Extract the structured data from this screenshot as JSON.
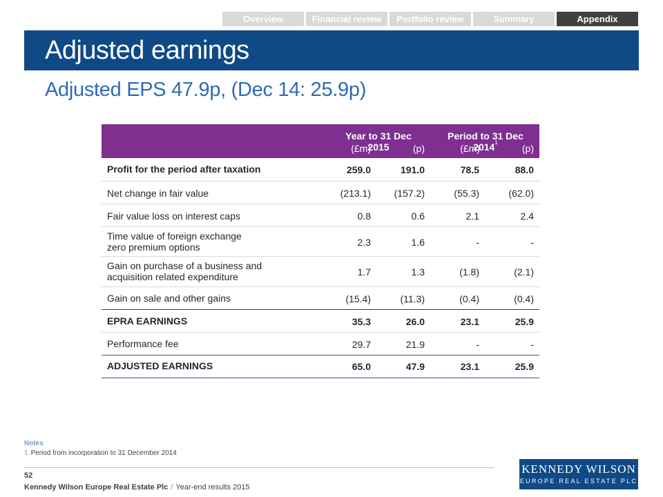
{
  "nav": {
    "tabs": [
      "Overview",
      "Financial review",
      "Portfolio review",
      "Summary",
      "Appendix"
    ],
    "active": "Appendix"
  },
  "title": "Adjusted earnings",
  "subtitle": "Adjusted EPS 47.9p, (Dec 14: 25.9p)",
  "table": {
    "group1": "Year to 31 Dec 2015",
    "group2": "Period to 31 Dec 2014",
    "group2_note": "1",
    "units": [
      "(£m)",
      "(p)",
      "(£m)",
      "(p)"
    ],
    "rows": [
      {
        "label": "Profit for the period after taxation",
        "values": [
          "259.0",
          "191.0",
          "78.5",
          "88.0"
        ]
      },
      {
        "label": "Net change in fair value",
        "values": [
          "(213.1)",
          "(157.2)",
          "(55.3)",
          "(62.0)"
        ]
      },
      {
        "label": "Fair value loss on interest caps",
        "values": [
          "0.8",
          "0.6",
          "2.1",
          "2.4"
        ]
      },
      {
        "label": "Time value of foreign exchange zero premium options",
        "values": [
          "2.3",
          "1.6",
          "-",
          "-"
        ]
      },
      {
        "label": "Gain on purchase of a business and acquisition related expenditure",
        "values": [
          "1.7",
          "1.3",
          "(1.8)",
          "(2.1)"
        ]
      },
      {
        "label": "Gain on sale and other gains",
        "values": [
          "(15.4)",
          "(11.3)",
          "(0.4)",
          "(0.4)"
        ]
      },
      {
        "label": "EPRA EARNINGS",
        "values": [
          "35.3",
          "26.0",
          "23.1",
          "25.9"
        ]
      },
      {
        "label": "Performance fee",
        "values": [
          "29.7",
          "21.9",
          "-",
          "-"
        ]
      },
      {
        "label": "ADJUSTED EARNINGS",
        "values": [
          "65.0",
          "47.9",
          "23.1",
          "25.9"
        ]
      }
    ]
  },
  "notes": {
    "title": "Notes",
    "items": [
      {
        "num": "1",
        "text": "Period from incorporation to 31 December 2014"
      }
    ]
  },
  "footer": {
    "page": "52",
    "company": "Kennedy Wilson Europe Real Estate Plc",
    "doc": "Year-end results 2015"
  },
  "logo": {
    "main": "KENNEDY WILSON",
    "sub": "EUROPE REAL ESTATE PLC"
  },
  "colors": {
    "brand_blue": "#0f4a87",
    "table_header_purple": "#7e2f90"
  }
}
